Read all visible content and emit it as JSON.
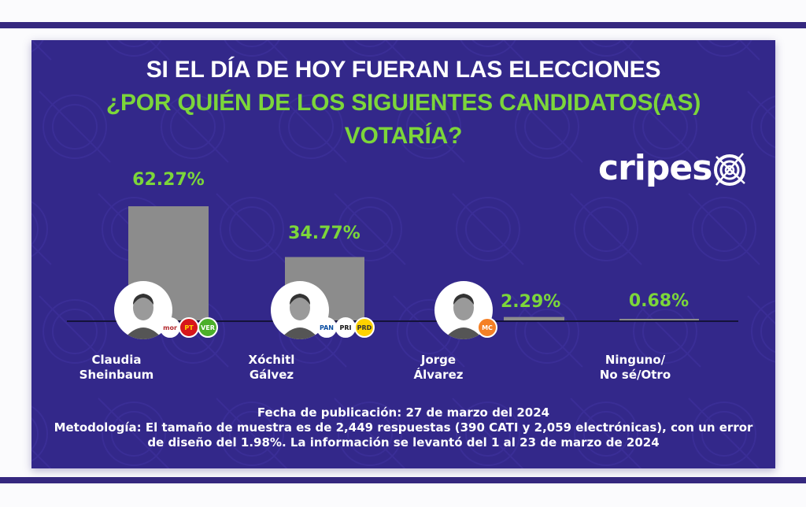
{
  "header": {
    "title_line1": "SI EL DÍA DE HOY FUERAN LAS ELECCIONES",
    "title_line2": "¿POR QUIÉN DE LOS SIGUIENTES CANDIDATOS(AS)",
    "title_line3": "VOTARÍA?"
  },
  "brand": {
    "logo_text": "cripes",
    "logo_icon": "target-crosshair-icon"
  },
  "colors": {
    "panel": "#33288a",
    "band": "#35287f",
    "accent_green": "#7cd63a",
    "bar": "#8c8c8c",
    "text": "#ffffff"
  },
  "candidates": [
    {
      "name_line1": "Claudia",
      "name_line2": "Sheinbaum",
      "value_label": "62.27%",
      "parties": [
        {
          "label": "morena",
          "bg": "#ffffff",
          "fg": "#b3282d"
        },
        {
          "label": "PT",
          "bg": "#d7161b",
          "fg": "#ffd200"
        },
        {
          "label": "VERDE",
          "bg": "#4caf2a",
          "fg": "#ffffff"
        }
      ]
    },
    {
      "name_line1": "Xóchitl",
      "name_line2": "Gálvez",
      "value_label": "34.77%",
      "parties": [
        {
          "label": "PAN",
          "bg": "#ffffff",
          "fg": "#0b4ea2"
        },
        {
          "label": "PRI",
          "bg": "#ffffff",
          "fg": "#111111"
        },
        {
          "label": "PRD",
          "bg": "#ffd200",
          "fg": "#333333"
        }
      ]
    },
    {
      "name_line1": "Jorge",
      "name_line2": "Álvarez",
      "value_label": "2.29%",
      "parties": [
        {
          "label": "MC",
          "bg": "#f58025",
          "fg": "#ffffff"
        }
      ]
    },
    {
      "name_line1": "Ninguno/",
      "name_line2": "No sé/Otro",
      "value_label": "0.68%",
      "parties": []
    }
  ],
  "footer": {
    "line1": "Fecha de publicación: 27 de marzo del 2024",
    "line2": "Metodología: El tamaño de muestra es de 2,449 respuestas (390 CATI y 2,059 electrónicas), con un error",
    "line3": "de diseño del 1.98%. La información se levantó del 1 al 23 de marzo de 2024"
  },
  "chart_data": {
    "type": "bar",
    "title": "SI EL DÍA DE HOY FUERAN LAS ELECCIONES ¿POR QUIÉN DE LOS SIGUIENTES CANDIDATOS(AS) VOTARÍA?",
    "categories": [
      "Claudia Sheinbaum",
      "Xóchitl Gálvez",
      "Jorge Álvarez",
      "Ninguno/No sé/Otro"
    ],
    "values": [
      62.27,
      34.77,
      2.29,
      0.68
    ],
    "data_labels": [
      "62.27%",
      "34.77%",
      "2.29%",
      "0.68%"
    ],
    "unit": "%",
    "xlabel": "",
    "ylabel": "",
    "ylim": [
      0,
      65
    ],
    "grid": false,
    "legend": "none"
  }
}
